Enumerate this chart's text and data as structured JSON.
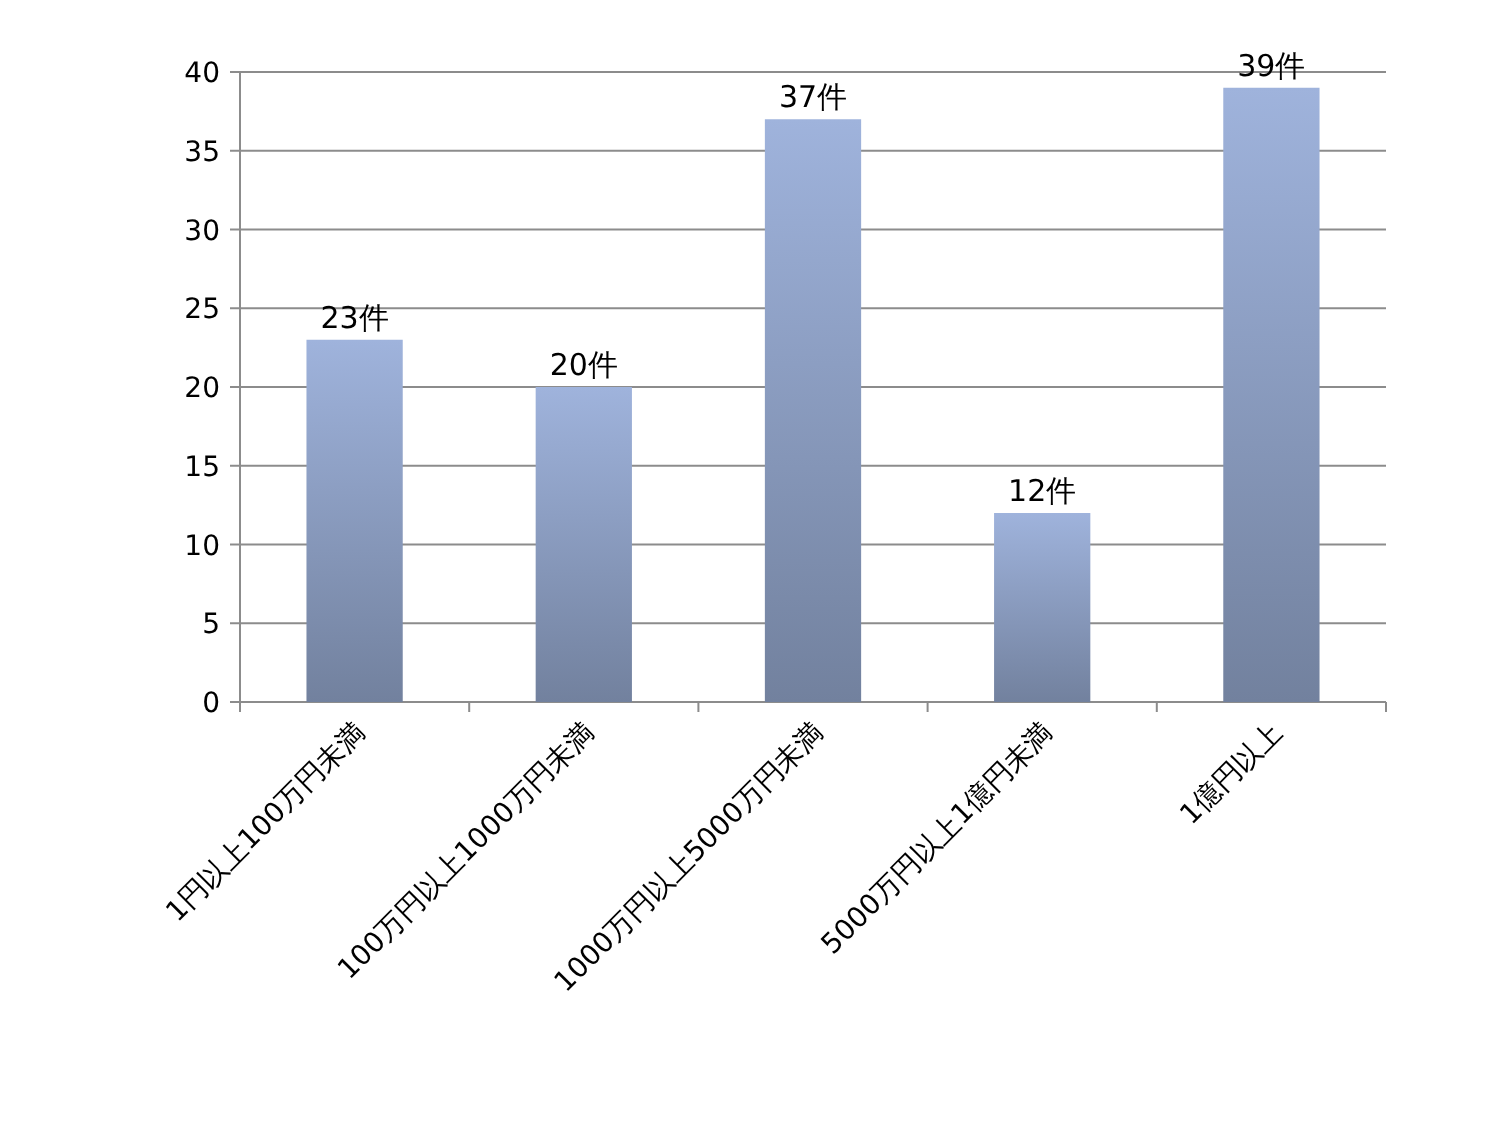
{
  "chart_data": {
    "type": "bar",
    "categories": [
      "1円以上100万円未満",
      "100万円以上1000万円未満",
      "1000万円以上5000万円未満",
      "5000万円以上1億円未満",
      "1億円以上"
    ],
    "values": [
      23,
      20,
      37,
      12,
      39
    ],
    "value_labels": [
      "23件",
      "20件",
      "37件",
      "12件",
      "39件"
    ],
    "color": "#9fb3dc",
    "ylim": [
      0,
      40
    ],
    "yticks": [
      0,
      5,
      10,
      15,
      20,
      25,
      30,
      35,
      40
    ],
    "grid": "y"
  }
}
